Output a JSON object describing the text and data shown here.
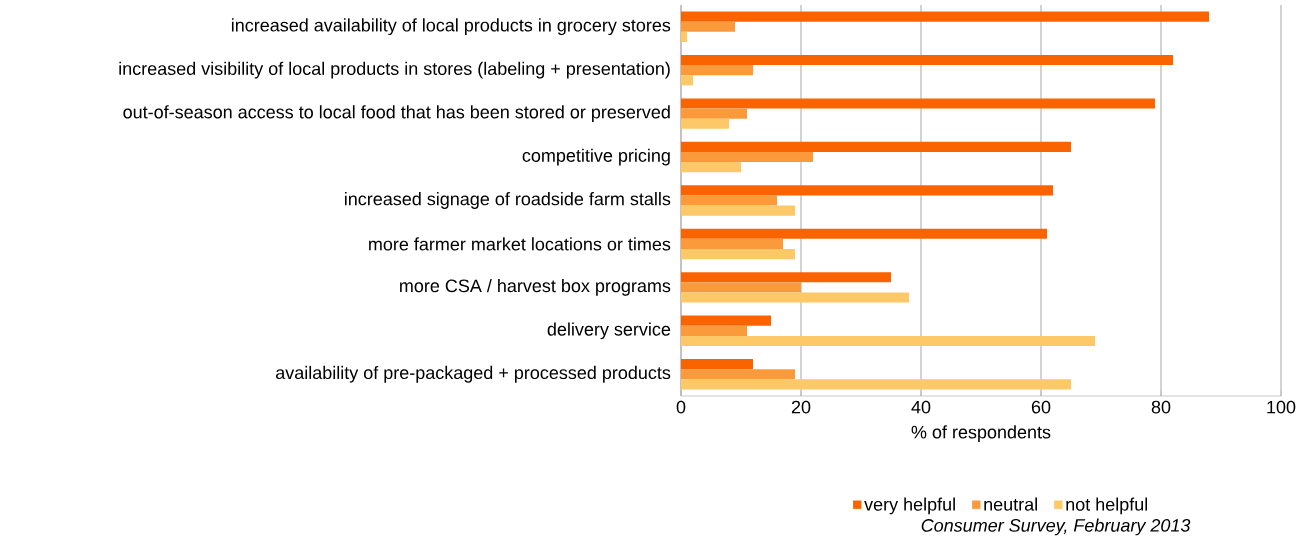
{
  "chart_data": {
    "type": "bar",
    "orientation": "horizontal",
    "xlabel": "% of respondents",
    "categories": [
      "increased availability of local products in grocery stores",
      "increased visibility of local products in stores (labeling + presentation)",
      "out-of-season access to local food that has been stored or preserved",
      "competitive pricing",
      "increased signage of roadside farm stalls",
      "more farmer market locations or times",
      "more CSA / harvest box programs",
      "delivery service",
      "availability of pre-packaged + processed products"
    ],
    "series": [
      {
        "name": "very helpful",
        "color": "#fa6400",
        "values": [
          88,
          82,
          79,
          65,
          62,
          61,
          35,
          15,
          12
        ]
      },
      {
        "name": "neutral",
        "color": "#fb9a3a",
        "values": [
          9,
          12,
          11,
          22,
          16,
          17,
          20,
          11,
          19
        ]
      },
      {
        "name": "not helpful",
        "color": "#fdc867",
        "values": [
          1,
          2,
          8,
          10,
          19,
          19,
          38,
          69,
          65
        ]
      }
    ],
    "xlim": [
      0,
      100
    ],
    "xticks": [
      0,
      20,
      40,
      60,
      80,
      100
    ],
    "grid": "x",
    "legend": "bottom",
    "annotations": [
      "Consumer Survey, February 2013"
    ]
  }
}
